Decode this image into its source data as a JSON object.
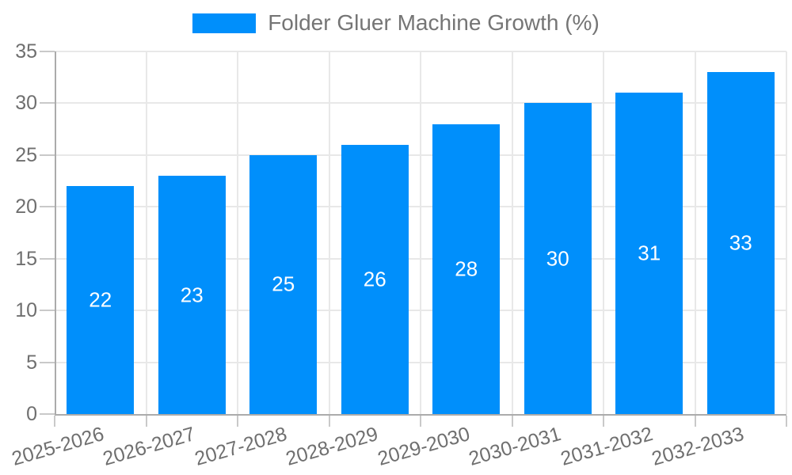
{
  "legend": {
    "label": "Folder Gluer Machine Growth (%)"
  },
  "chart_data": {
    "type": "bar",
    "title": "Folder Gluer Machine Growth (%)",
    "series_name": "Folder Gluer Machine Growth (%)",
    "categories": [
      "2025-2026",
      "2026-2027",
      "2027-2028",
      "2028-2029",
      "2029-2030",
      "2030-2031",
      "2031-2032",
      "2032-2033"
    ],
    "values": [
      22,
      23,
      25,
      26,
      28,
      30,
      31,
      33
    ],
    "xlabel": "",
    "ylabel": "",
    "ylim": [
      0,
      35
    ],
    "yticks": [
      0,
      5,
      10,
      15,
      20,
      25,
      30,
      35
    ],
    "grid": true,
    "legend_position": "top",
    "value_labels_inside_bars": true,
    "x_label_rotation_deg": -16,
    "bar_slot_fraction": 0.74,
    "colors": {
      "bar": "#008FFB",
      "value_label": "#FFFFFF",
      "axis_text": "#6F6F6F",
      "legend_text": "#757575",
      "grid_line": "#E8E8E8",
      "axis_line": "#ABABAB",
      "tick": "#C9C9C9"
    }
  }
}
